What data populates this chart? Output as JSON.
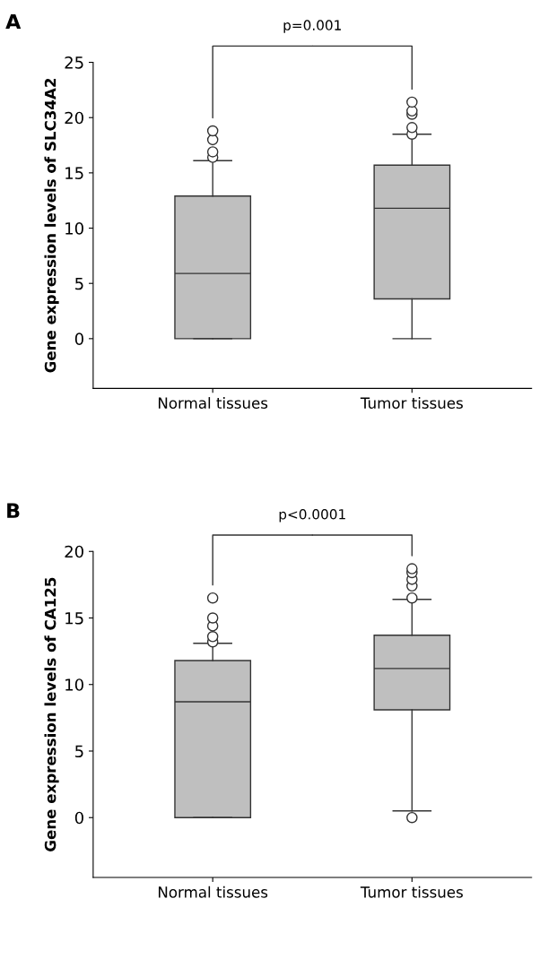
{
  "chart_data": [
    {
      "type": "box",
      "title": "A",
      "ylabel": "Gene expression levels of SLC34A2",
      "categories": [
        "Normal tissues",
        "Tumor tissues"
      ],
      "color": "#bfbfbf",
      "boxes": [
        {
          "low": 0,
          "q1": 0,
          "median": 5.9,
          "q3": 12.9,
          "high": 16.1,
          "outliers": [
            16.4,
            16.9,
            18.0,
            18.8
          ]
        },
        {
          "low": 0,
          "q1": 3.6,
          "median": 11.8,
          "q3": 15.7,
          "high": 18.5,
          "outliers": [
            18.5,
            19.1,
            20.3,
            20.6,
            21.4
          ]
        }
      ],
      "ylim": [
        -4.5,
        25
      ],
      "yticks": [
        0,
        5,
        10,
        15,
        20,
        25
      ],
      "grid": false,
      "annotations": [
        "p=0.001"
      ]
    },
    {
      "type": "box",
      "title": "B",
      "ylabel": "Gene expression levels of CA125",
      "categories": [
        "Normal tissues",
        "Tumor tissues"
      ],
      "color": "#bfbfbf",
      "boxes": [
        {
          "low": 0,
          "q1": 0,
          "median": 8.7,
          "q3": 11.8,
          "high": 13.1,
          "outliers": [
            13.2,
            13.6,
            14.4,
            15.0,
            16.5
          ]
        },
        {
          "low": 0.5,
          "q1": 8.1,
          "median": 11.2,
          "q3": 13.7,
          "high": 16.4,
          "outliers": [
            0.0,
            16.5,
            17.4,
            17.9,
            18.4,
            18.7
          ]
        }
      ],
      "ylim": [
        -4.5,
        20
      ],
      "yticks": [
        0,
        5,
        10,
        15,
        20
      ],
      "grid": false,
      "annotations": [
        "p<0.0001"
      ]
    }
  ]
}
